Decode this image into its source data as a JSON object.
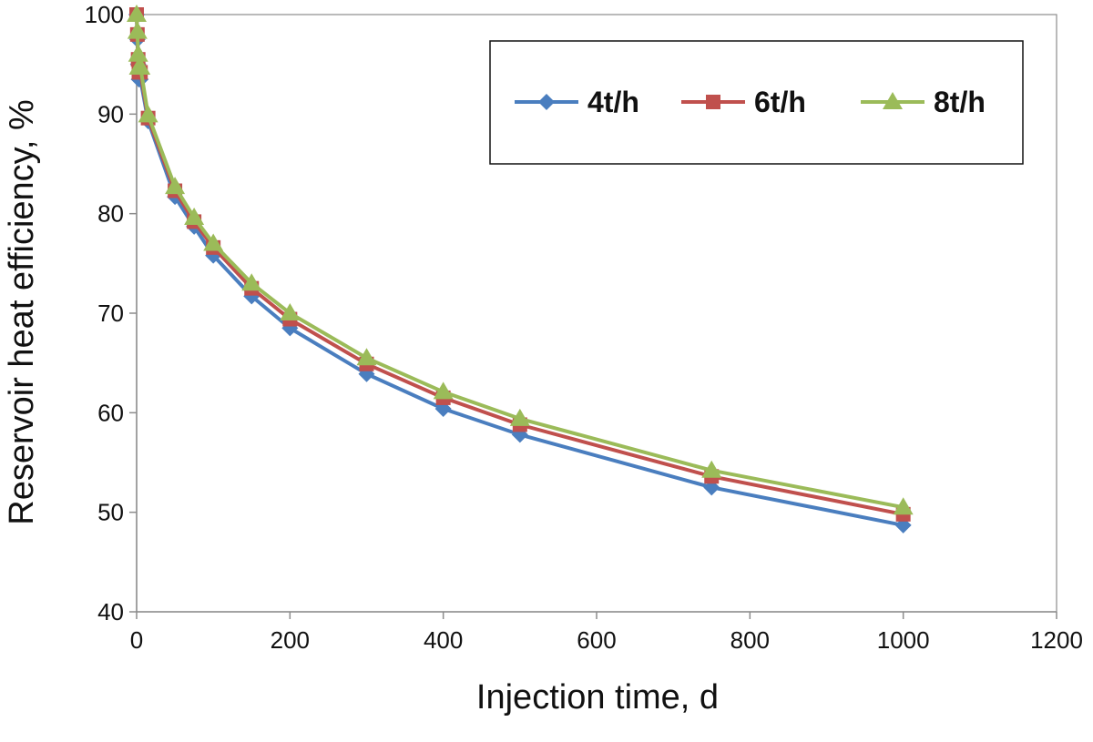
{
  "chart_data": {
    "type": "line",
    "title": "",
    "xlabel": "Injection time, d",
    "ylabel": "Reservoir heat efficiency, %",
    "xlim": [
      0,
      1200
    ],
    "ylim": [
      40,
      100
    ],
    "x_ticks": [
      "0",
      "200",
      "400",
      "600",
      "800",
      "1000",
      "1200"
    ],
    "y_ticks": [
      "40",
      "50",
      "60",
      "70",
      "80",
      "90",
      "100"
    ],
    "grid": false,
    "legend_position": "top-right",
    "x": [
      0,
      1,
      2,
      3,
      5,
      15,
      50,
      75,
      100,
      150,
      200,
      300,
      400,
      500,
      750,
      1000
    ],
    "series": [
      {
        "name": "4t/h",
        "color": "#4a7ebf",
        "marker": "diamond",
        "values": [
          100,
          97.5,
          95,
          93.5,
          93.5,
          89.3,
          81.7,
          78.7,
          75.8,
          71.7,
          68.5,
          63.9,
          60.4,
          57.8,
          52.5,
          48.7
        ]
      },
      {
        "name": "6t/h",
        "color": "#c0504d",
        "marker": "square",
        "values": [
          100,
          98,
          95.5,
          94.2,
          94.2,
          89.6,
          82.3,
          79.2,
          76.6,
          72.5,
          69.4,
          64.9,
          61.5,
          58.8,
          53.6,
          49.8
        ]
      },
      {
        "name": "8t/h",
        "color": "#9bbb59",
        "marker": "triangle",
        "values": [
          100,
          98.3,
          96,
          94.7,
          94.7,
          89.9,
          82.7,
          79.6,
          77,
          73,
          70,
          65.5,
          62.1,
          59.4,
          54.2,
          50.5
        ]
      }
    ]
  }
}
